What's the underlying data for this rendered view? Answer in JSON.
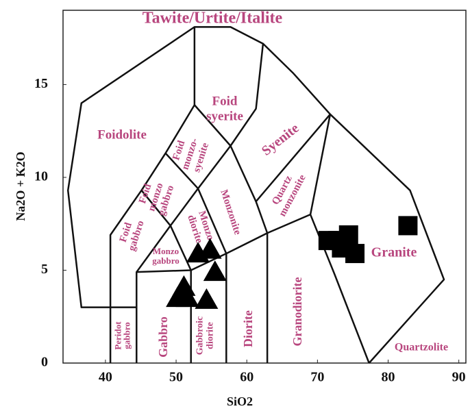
{
  "chart_data": {
    "type": "scatter",
    "title": "Tawite/Urtite/Italite",
    "x_label": "SiO2",
    "y_label": "Na2O + K2O",
    "xlim": [
      34,
      91
    ],
    "ylim": [
      0,
      19
    ],
    "xticks": [
      40,
      50,
      60,
      70,
      80,
      90
    ],
    "yticks": [
      0,
      5,
      10,
      15
    ],
    "boundary_color": "#111111",
    "boundaries": [
      {
        "x": [
          44.4,
          36.6,
          34.7,
          36.6,
          52.6,
          57.7,
          62.3,
          66.6,
          71.8,
          83.1,
          87.9,
          77.3
        ],
        "y": [
          3.0,
          3.0,
          9.3,
          14.0,
          18.1,
          18.1,
          17.2,
          15.6,
          13.4,
          9.3,
          4.5,
          0
        ]
      },
      {
        "x": [
          69.0,
          72.4,
          77.3
        ],
        "y": [
          8.0,
          4.8,
          0
        ]
      },
      {
        "x": [
          40.7,
          40.7,
          45.1,
          48.5,
          52.6,
          52.6
        ],
        "y": [
          0,
          6.9,
          9.3,
          11.3,
          13.9,
          18.1
        ]
      },
      {
        "x": [
          52.6,
          57.7,
          61.3,
          62.3
        ],
        "y": [
          13.9,
          11.7,
          13.7,
          17.2
        ]
      },
      {
        "x": [
          57.7,
          61.3,
          62.9
        ],
        "y": [
          11.7,
          8.7,
          7.0
        ]
      },
      {
        "x": [
          61.3,
          71.8
        ],
        "y": [
          8.7,
          13.4
        ]
      },
      {
        "x": [
          69.0,
          71.8
        ],
        "y": [
          8.0,
          13.4
        ]
      },
      {
        "x": [
          44.4,
          44.4,
          52.1,
          57.1,
          62.9,
          69.0
        ],
        "y": [
          0,
          4.9,
          5.0,
          5.9,
          7.0,
          8.0
        ]
      },
      {
        "x": [
          52.1,
          52.1
        ],
        "y": [
          0,
          5.0
        ]
      },
      {
        "x": [
          57.1,
          57.1
        ],
        "y": [
          0,
          5.9
        ]
      },
      {
        "x": [
          62.9,
          62.9
        ],
        "y": [
          0,
          7.0
        ]
      },
      {
        "x": [
          45.1,
          49.2,
          52.1
        ],
        "y": [
          9.3,
          7.4,
          5.0
        ]
      },
      {
        "x": [
          44.4,
          49.2
        ],
        "y": [
          4.9,
          7.4
        ]
      },
      {
        "x": [
          48.5,
          53.1
        ],
        "y": [
          11.3,
          9.4
        ]
      },
      {
        "x": [
          49.2,
          53.1,
          57.7
        ],
        "y": [
          7.4,
          9.4,
          11.7
        ]
      },
      {
        "x": [
          53.1,
          57.1
        ],
        "y": [
          9.4,
          5.9
        ]
      }
    ],
    "field_labels": [
      [
        "Foidolite"
      ],
      [
        "Foid",
        "syerite"
      ],
      [
        "Foid",
        "monzo-",
        "syenite"
      ],
      [
        "Syenite"
      ],
      [
        "Foid",
        "monzo",
        "gabbro"
      ],
      [
        "Foid",
        "gabbro"
      ],
      [
        "Monzonite"
      ],
      [
        "Quartz",
        "monzonite"
      ],
      [
        "Monzo",
        "diorite"
      ],
      [
        "Monzo",
        "gabbro"
      ],
      [
        "Granite"
      ],
      [
        "Peridot",
        "gabbro"
      ],
      [
        "Gabbro"
      ],
      [
        "Gabbroic",
        "diorite"
      ],
      [
        "Diorite"
      ],
      [
        "Granodiorite"
      ],
      [
        "Quartzolite"
      ]
    ],
    "series": [
      {
        "name": "Triangles",
        "marker": "triangle",
        "color": "#000000",
        "x": [
          53.1,
          54.8,
          55.5,
          51.1,
          50.2,
          51.6,
          54.3
        ],
        "values": [
          5.9,
          6.1,
          4.9,
          4.1,
          3.5,
          3.5,
          3.4
        ]
      },
      {
        "name": "Squares",
        "marker": "square",
        "color": "#000000",
        "x": [
          71.5,
          72.9,
          74.4,
          73.4,
          75.3,
          82.8
        ],
        "values": [
          6.6,
          6.6,
          6.9,
          6.2,
          5.9,
          7.4
        ]
      }
    ]
  }
}
